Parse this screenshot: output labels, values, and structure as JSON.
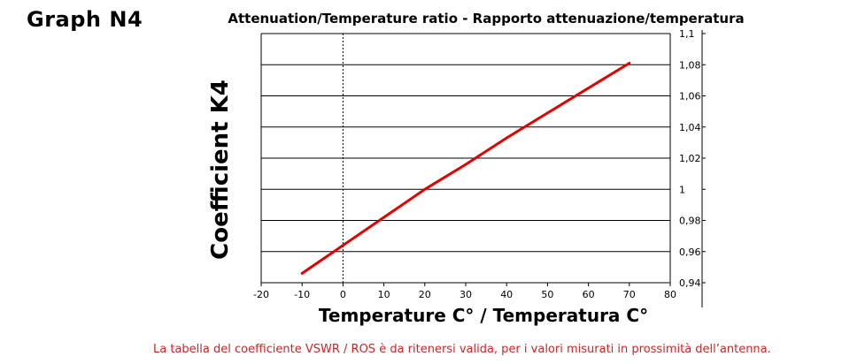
{
  "graph_label": "Graph N4",
  "footnote": "La tabella del coefficiente VSWR / ROS è da ritenersi valida, per i valori misurati in prossimità dell’antenna.",
  "colors": {
    "series": "#e00000",
    "footnote": "#c62828",
    "grid": "#000000"
  },
  "chart_data": {
    "type": "line",
    "title": "Attenuation/Temperature ratio - Rapporto attenuazione/temperatura",
    "xlabel": "Temperature C° / Temperatura C°",
    "ylabel": "Coefficient K4",
    "xlim": [
      -20,
      80
    ],
    "ylim": [
      0.94,
      1.1
    ],
    "x_ticks": [
      -20,
      -10,
      0,
      10,
      20,
      30,
      40,
      50,
      60,
      70,
      80
    ],
    "x_tick_labels": [
      "-20",
      "-10",
      "0",
      "10",
      "20",
      "30",
      "40",
      "50",
      "60",
      "70",
      "80"
    ],
    "y_ticks": [
      0.94,
      0.96,
      0.98,
      1,
      1.02,
      1.04,
      1.06,
      1.08,
      1.1
    ],
    "y_tick_labels": [
      "0,94",
      "0,96",
      "0,98",
      "1",
      "1,02",
      "1,04",
      "1,06",
      "1,08",
      "1,1"
    ],
    "y_axis_side": "right",
    "horizontal_grid": true,
    "zero_line": "dotted vertical at x = 0",
    "series": [
      {
        "x": [
          -10,
          0,
          10,
          20,
          30,
          40,
          50,
          60,
          70
        ],
        "y": [
          0.946,
          0.964,
          0.982,
          1.0,
          1.016,
          1.033,
          1.049,
          1.065,
          1.081
        ]
      }
    ]
  }
}
